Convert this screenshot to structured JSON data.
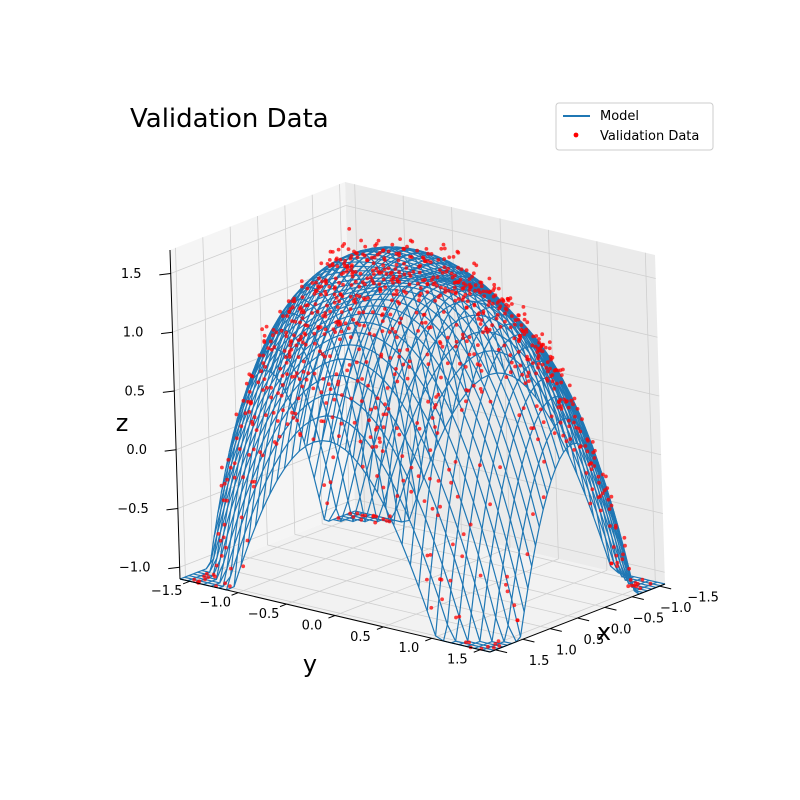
{
  "chart_data": {
    "type": "surface3d-scatter",
    "title": "Validation Data",
    "xlabel": "x",
    "ylabel": "y",
    "zlabel": "z",
    "xlim": [
      -1.6,
      1.6
    ],
    "ylim": [
      -1.6,
      1.6
    ],
    "zlim": [
      -1.1,
      1.7
    ],
    "x_ticks": [
      -1.5,
      -1.0,
      -0.5,
      0.0,
      0.5,
      1.0,
      1.5
    ],
    "x_tick_labels": [
      "−1.5",
      "−1.0",
      "−0.5",
      "0.0",
      "0.5",
      "1.0",
      "1.5"
    ],
    "y_ticks": [
      -1.5,
      -1.0,
      -0.5,
      0.0,
      0.5,
      1.0,
      1.5
    ],
    "y_tick_labels": [
      "−1.5",
      "−1.0",
      "−0.5",
      "0.0",
      "0.5",
      "1.0",
      "1.5"
    ],
    "z_ticks": [
      -1.0,
      -0.5,
      0.0,
      0.5,
      1.0,
      1.5
    ],
    "z_tick_labels": [
      "−1.0",
      "−0.5",
      "0.0",
      "0.5",
      "1.0",
      "1.5"
    ],
    "grid": true,
    "legend_position": "top-right",
    "series": [
      {
        "name": "Model",
        "kind": "wireframe",
        "color": "#1f77b4",
        "grid_n": 41
      },
      {
        "name": "Validation Data",
        "kind": "scatter",
        "color": "#ff0000",
        "point_count": 900
      }
    ]
  }
}
